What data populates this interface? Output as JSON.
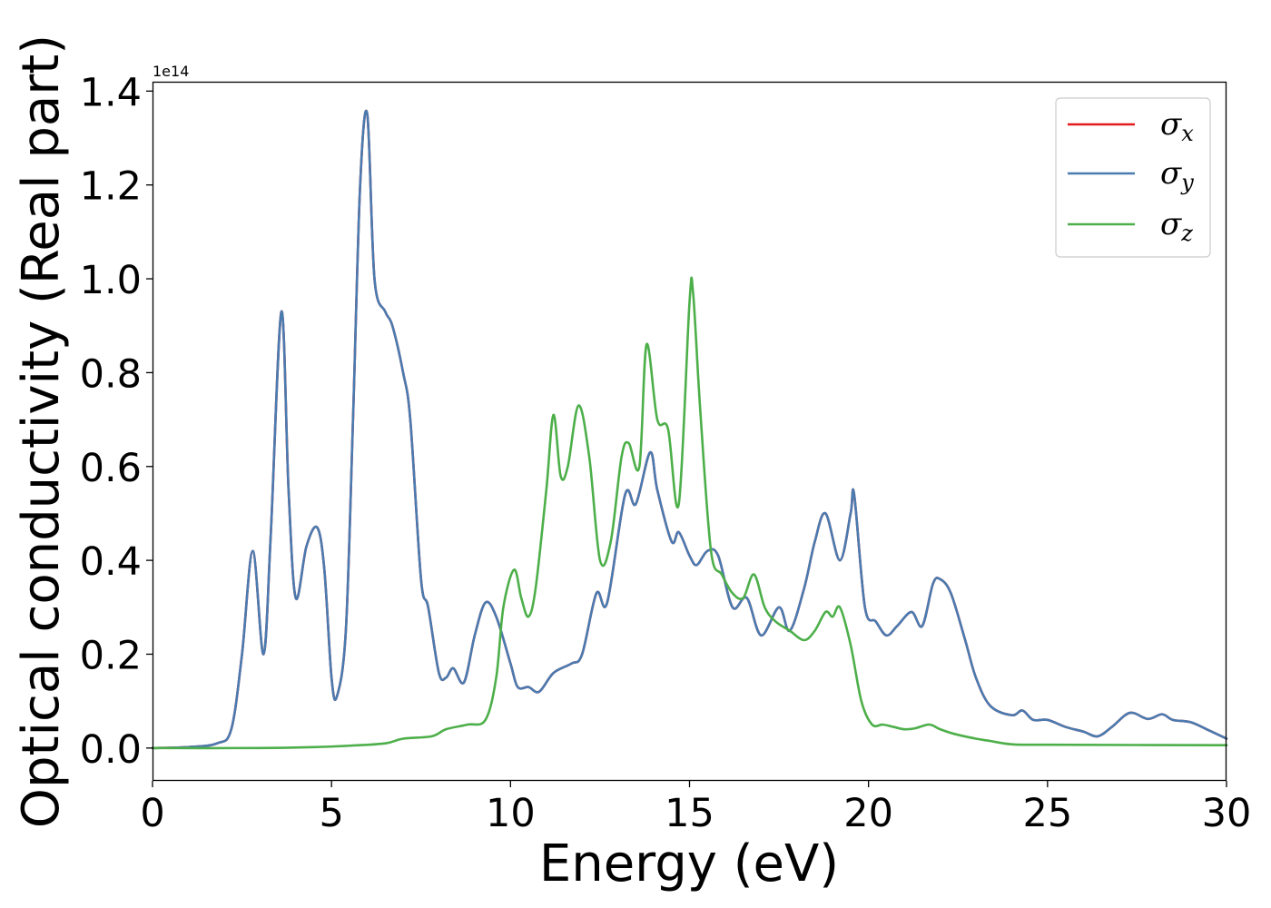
{
  "chart_data": {
    "type": "line",
    "title": "",
    "xlabel": "Energy (eV)",
    "ylabel": "Optical conductivity (Real part)",
    "y_offset_text": "1e14",
    "xlim": [
      0,
      30
    ],
    "ylim": [
      -0.07,
      1.42
    ],
    "x_ticks": [
      0,
      5,
      10,
      15,
      20,
      25,
      30
    ],
    "x_tick_labels": [
      "0",
      "5",
      "10",
      "15",
      "20",
      "25",
      "30"
    ],
    "y_ticks": [
      0.0,
      0.2,
      0.4,
      0.6,
      0.8,
      1.0,
      1.2,
      1.4
    ],
    "y_tick_labels": [
      "0.0",
      "0.2",
      "0.4",
      "0.6",
      "0.8",
      "1.0",
      "1.2",
      "1.4"
    ],
    "grid": false,
    "legend_placement": "top-right",
    "series": [
      {
        "name": "x",
        "legend_symbol": "σ",
        "legend_sub": "x",
        "color": "#e41a1c",
        "x": [
          0,
          1.0,
          1.8,
          2.2,
          2.5,
          2.8,
          3.1,
          3.3,
          3.6,
          3.8,
          4.0,
          4.3,
          4.6,
          4.8,
          5.0,
          5.15,
          5.4,
          5.6,
          5.8,
          6.0,
          6.2,
          6.5,
          6.7,
          7.0,
          7.2,
          7.5,
          7.7,
          8.0,
          8.2,
          8.4,
          8.7,
          9.0,
          9.3,
          9.6,
          10.0,
          10.2,
          10.5,
          10.8,
          11.2,
          11.7,
          12.0,
          12.4,
          12.7,
          13.2,
          13.5,
          13.9,
          14.1,
          14.5,
          14.7,
          15.0,
          15.2,
          15.5,
          15.8,
          16.2,
          16.6,
          17.0,
          17.5,
          17.8,
          18.2,
          18.5,
          18.8,
          19.2,
          19.5,
          19.6,
          19.9,
          20.2,
          20.5,
          20.8,
          21.2,
          21.5,
          21.8,
          22.0,
          22.3,
          22.7,
          23.0,
          23.4,
          24.0,
          24.3,
          24.6,
          25.0,
          25.5,
          26.0,
          26.4,
          26.8,
          27.3,
          27.8,
          28.2,
          28.5,
          29.0,
          29.5,
          30
        ],
        "values": [
          0.0,
          0.002,
          0.01,
          0.04,
          0.2,
          0.42,
          0.2,
          0.45,
          0.93,
          0.55,
          0.32,
          0.43,
          0.47,
          0.38,
          0.15,
          0.11,
          0.25,
          0.7,
          1.2,
          1.35,
          1.0,
          0.93,
          0.9,
          0.8,
          0.7,
          0.36,
          0.3,
          0.16,
          0.15,
          0.17,
          0.14,
          0.24,
          0.31,
          0.28,
          0.18,
          0.13,
          0.13,
          0.12,
          0.16,
          0.18,
          0.2,
          0.33,
          0.31,
          0.54,
          0.52,
          0.63,
          0.55,
          0.44,
          0.46,
          0.41,
          0.39,
          0.42,
          0.41,
          0.3,
          0.32,
          0.24,
          0.3,
          0.25,
          0.34,
          0.44,
          0.5,
          0.4,
          0.5,
          0.54,
          0.3,
          0.27,
          0.24,
          0.26,
          0.29,
          0.26,
          0.35,
          0.36,
          0.33,
          0.23,
          0.15,
          0.09,
          0.07,
          0.08,
          0.06,
          0.06,
          0.045,
          0.035,
          0.025,
          0.045,
          0.075,
          0.062,
          0.072,
          0.06,
          0.055,
          0.038,
          0.02
        ]
      },
      {
        "name": "y",
        "legend_symbol": "σ",
        "legend_sub": "y",
        "color": "#4a7bb0",
        "x": [
          0,
          1.0,
          1.8,
          2.2,
          2.5,
          2.8,
          3.1,
          3.3,
          3.6,
          3.8,
          4.0,
          4.3,
          4.6,
          4.8,
          5.0,
          5.15,
          5.4,
          5.6,
          5.8,
          6.0,
          6.2,
          6.5,
          6.7,
          7.0,
          7.2,
          7.5,
          7.7,
          8.0,
          8.2,
          8.4,
          8.7,
          9.0,
          9.3,
          9.6,
          10.0,
          10.2,
          10.5,
          10.8,
          11.2,
          11.7,
          12.0,
          12.4,
          12.7,
          13.2,
          13.5,
          13.9,
          14.1,
          14.5,
          14.7,
          15.0,
          15.2,
          15.5,
          15.8,
          16.2,
          16.6,
          17.0,
          17.5,
          17.8,
          18.2,
          18.5,
          18.8,
          19.2,
          19.5,
          19.6,
          19.9,
          20.2,
          20.5,
          20.8,
          21.2,
          21.5,
          21.8,
          22.0,
          22.3,
          22.7,
          23.0,
          23.4,
          24.0,
          24.3,
          24.6,
          25.0,
          25.5,
          26.0,
          26.4,
          26.8,
          27.3,
          27.8,
          28.2,
          28.5,
          29.0,
          29.5,
          30
        ],
        "values": [
          0.0,
          0.002,
          0.01,
          0.04,
          0.2,
          0.42,
          0.2,
          0.45,
          0.93,
          0.55,
          0.32,
          0.43,
          0.47,
          0.38,
          0.15,
          0.11,
          0.25,
          0.7,
          1.2,
          1.35,
          1.0,
          0.93,
          0.9,
          0.8,
          0.7,
          0.36,
          0.3,
          0.16,
          0.15,
          0.17,
          0.14,
          0.24,
          0.31,
          0.28,
          0.18,
          0.13,
          0.13,
          0.12,
          0.16,
          0.18,
          0.2,
          0.33,
          0.31,
          0.54,
          0.52,
          0.63,
          0.55,
          0.44,
          0.46,
          0.41,
          0.39,
          0.42,
          0.41,
          0.3,
          0.32,
          0.24,
          0.3,
          0.25,
          0.34,
          0.44,
          0.5,
          0.4,
          0.5,
          0.54,
          0.3,
          0.27,
          0.24,
          0.26,
          0.29,
          0.26,
          0.35,
          0.36,
          0.33,
          0.23,
          0.15,
          0.09,
          0.07,
          0.08,
          0.06,
          0.06,
          0.045,
          0.035,
          0.025,
          0.045,
          0.075,
          0.062,
          0.072,
          0.06,
          0.055,
          0.038,
          0.02
        ]
      },
      {
        "name": "z",
        "legend_symbol": "σ",
        "legend_sub": "z",
        "color": "#4daf4a",
        "x": [
          0,
          3.0,
          4.5,
          5.5,
          6.5,
          7.0,
          7.8,
          8.2,
          8.8,
          9.3,
          9.6,
          9.8,
          10.1,
          10.3,
          10.5,
          10.7,
          11.0,
          11.2,
          11.4,
          11.6,
          11.9,
          12.2,
          12.5,
          12.8,
          13.1,
          13.3,
          13.6,
          13.8,
          14.1,
          14.4,
          14.7,
          15.0,
          15.1,
          15.3,
          15.6,
          15.9,
          16.2,
          16.5,
          16.8,
          17.1,
          17.4,
          17.8,
          18.2,
          18.5,
          18.8,
          19.0,
          19.2,
          19.5,
          19.8,
          20.1,
          20.4,
          20.7,
          21.0,
          21.3,
          21.7,
          22.0,
          22.4,
          23.0,
          23.4,
          24.0,
          25.0,
          30
        ],
        "values": [
          0.0,
          0.0,
          0.002,
          0.005,
          0.01,
          0.02,
          0.025,
          0.04,
          0.05,
          0.06,
          0.15,
          0.3,
          0.38,
          0.32,
          0.28,
          0.34,
          0.55,
          0.71,
          0.58,
          0.6,
          0.73,
          0.62,
          0.4,
          0.44,
          0.62,
          0.65,
          0.6,
          0.86,
          0.7,
          0.68,
          0.52,
          0.95,
          0.97,
          0.72,
          0.42,
          0.37,
          0.33,
          0.32,
          0.37,
          0.3,
          0.27,
          0.25,
          0.23,
          0.25,
          0.29,
          0.28,
          0.3,
          0.22,
          0.1,
          0.05,
          0.05,
          0.045,
          0.04,
          0.042,
          0.05,
          0.04,
          0.03,
          0.02,
          0.015,
          0.008,
          0.007,
          0.006
        ]
      }
    ]
  }
}
